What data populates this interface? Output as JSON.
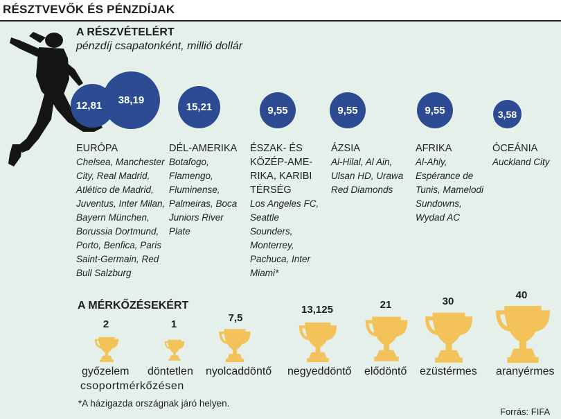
{
  "header": {
    "title": "RÉSZTVEVŐK ÉS PÉNZDÍJAK"
  },
  "participation": {
    "heading": "A RÉSZVÉTELÉRT",
    "subtitle": "pénzdíj csapatonként, millió dollár",
    "regions": [
      {
        "name": "EURÓPA",
        "amounts": [
          "12,81",
          "38,19"
        ],
        "clubs": "Chelsea, Manchester\nCity, Real Madrid,\nAtlético de Madrid,\nJuventus, Inter Milan,\nBayern München,\nBorussia Dortmund,\nPorto, Benfica, Paris\nSaint-Germain, Red\nBull Salzburg"
      },
      {
        "name": "DÉL-AMERIKA",
        "amounts": [
          "15,21"
        ],
        "clubs": "Botafogo,\nFlamengo,\nFluminense,\nPalmeiras, Boca\nJuniors River\nPlate"
      },
      {
        "name": "ÉSZAK- ÉS\nKÖZÉP-AME-\nRIKA, KARIBI\nTÉRSÉG",
        "amounts": [
          "9,55"
        ],
        "clubs": "Los Angeles FC,\nSeattle\nSounders,\nMonterrey,\nPachuca, Inter\nMiami*"
      },
      {
        "name": "ÁZSIA",
        "amounts": [
          "9,55"
        ],
        "clubs": "Al-Hilal, Al Ain,\nUlsan HD, Urawa\nRed Diamonds"
      },
      {
        "name": "AFRIKA",
        "amounts": [
          "9,55"
        ],
        "clubs": "Al-Ahly,\nEspérance de\nTunis, Mamelodi\nSundowns,\nWydad AC"
      },
      {
        "name": "ÓCEÁNIA",
        "amounts": [
          "3,58"
        ],
        "clubs": "Auckland City"
      }
    ]
  },
  "matches": {
    "heading": "A MÉRKŐZÉSEKÉRT",
    "stages": [
      {
        "label": "győzelem",
        "amount": "2"
      },
      {
        "label": "döntetlen",
        "amount": "1"
      },
      {
        "label": "nyolcaddöntő",
        "amount": "7,5"
      },
      {
        "label": "negyeddöntő",
        "amount": "13,125"
      },
      {
        "label": "elődöntő",
        "amount": "21"
      },
      {
        "label": "ezüstérmes",
        "amount": "30"
      },
      {
        "label": "aranyérmes",
        "amount": "40"
      }
    ],
    "group_note": "csoportmérkőzésen"
  },
  "footnote": "*A házigazda országnak járó helyen.",
  "source": "Forrás: FIFA",
  "colors": {
    "circle": "#2d4b93",
    "trophy": "#f3c35a",
    "panel": "#e5f0ea",
    "silhouette": "#151515"
  },
  "icons": {
    "player": "football-player-silhouette",
    "trophy": "trophy-icon"
  }
}
